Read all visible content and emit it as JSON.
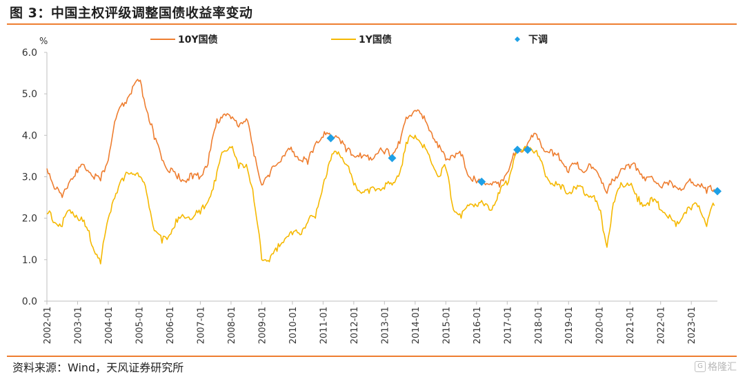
{
  "header": {
    "title": "图  3：中国主权评级调整国债收益率变动"
  },
  "footer": {
    "source": "资料来源：Wind，天风证券研究所",
    "watermark": "格隆汇",
    "watermark_icon": "G"
  },
  "colors": {
    "rule": "#ee7d2f",
    "series_10y": "#ee7d2f",
    "series_1y": "#f5b800",
    "downgrade": "#1ea0e6",
    "axis": "#bfbfbf"
  },
  "chart_data": {
    "type": "line",
    "title": "图  3：中国主权评级调整国债收益率变动",
    "ylabel": "%",
    "xlabel": "",
    "ylim": [
      0,
      6
    ],
    "yticks": [
      "0.0",
      "1.0",
      "2.0",
      "3.0",
      "4.0",
      "5.0",
      "6.0"
    ],
    "xlim": [
      "2002-01",
      "2023-10"
    ],
    "xticks": [
      "2002-01",
      "2003-01",
      "2004-01",
      "2005-01",
      "2006-01",
      "2007-01",
      "2008-01",
      "2009-01",
      "2010-01",
      "2011-01",
      "2012-01",
      "2013-01",
      "2014-01",
      "2015-01",
      "2016-01",
      "2017-01",
      "2018-01",
      "2019-01",
      "2020-01",
      "2021-01",
      "2022-01",
      "2023-01"
    ],
    "legend_position": "top",
    "grid": false,
    "series": [
      {
        "name": "10Y国债",
        "kind": "line",
        "color": "#ee7d2f",
        "x": [
          "2002-01",
          "2002-04",
          "2002-07",
          "2002-10",
          "2003-01",
          "2003-04",
          "2003-07",
          "2003-10",
          "2004-01",
          "2004-04",
          "2004-07",
          "2004-10",
          "2005-01",
          "2005-04",
          "2005-07",
          "2005-10",
          "2006-01",
          "2006-04",
          "2006-07",
          "2006-10",
          "2007-01",
          "2007-04",
          "2007-07",
          "2007-10",
          "2008-01",
          "2008-04",
          "2008-07",
          "2008-10",
          "2009-01",
          "2009-04",
          "2009-07",
          "2009-10",
          "2010-01",
          "2010-04",
          "2010-07",
          "2010-10",
          "2011-01",
          "2011-04",
          "2011-07",
          "2011-10",
          "2012-01",
          "2012-04",
          "2012-07",
          "2012-10",
          "2013-01",
          "2013-04",
          "2013-07",
          "2013-10",
          "2014-01",
          "2014-04",
          "2014-07",
          "2014-10",
          "2015-01",
          "2015-04",
          "2015-07",
          "2015-10",
          "2016-01",
          "2016-04",
          "2016-07",
          "2016-10",
          "2017-01",
          "2017-04",
          "2017-07",
          "2017-10",
          "2018-01",
          "2018-04",
          "2018-07",
          "2018-10",
          "2019-01",
          "2019-04",
          "2019-07",
          "2019-10",
          "2020-01",
          "2020-04",
          "2020-07",
          "2020-10",
          "2021-01",
          "2021-04",
          "2021-07",
          "2021-10",
          "2022-01",
          "2022-04",
          "2022-07",
          "2022-10",
          "2023-01",
          "2023-04",
          "2023-07",
          "2023-10"
        ],
        "values": [
          3.2,
          2.7,
          2.5,
          2.9,
          3.1,
          3.2,
          3.0,
          2.9,
          3.4,
          4.4,
          4.7,
          5.0,
          5.3,
          4.6,
          3.9,
          3.4,
          3.1,
          2.95,
          2.9,
          2.95,
          3.0,
          3.3,
          4.2,
          4.5,
          4.4,
          4.2,
          4.4,
          3.5,
          2.8,
          3.0,
          3.3,
          3.5,
          3.6,
          3.4,
          3.3,
          3.8,
          3.95,
          3.95,
          3.95,
          3.6,
          3.5,
          3.45,
          3.4,
          3.55,
          3.55,
          3.5,
          3.8,
          4.4,
          4.6,
          4.4,
          4.1,
          3.7,
          3.4,
          3.5,
          3.5,
          3.0,
          2.85,
          2.85,
          2.8,
          2.75,
          3.1,
          3.5,
          3.6,
          3.9,
          3.9,
          3.6,
          3.5,
          3.4,
          3.1,
          3.3,
          3.1,
          3.2,
          3.0,
          2.6,
          2.9,
          3.2,
          3.2,
          3.2,
          2.9,
          2.95,
          2.75,
          2.8,
          2.75,
          2.7,
          2.85,
          2.8,
          2.6,
          2.7
        ]
      },
      {
        "name": "1Y国债",
        "kind": "line",
        "color": "#f5b800",
        "x": [
          "2002-01",
          "2002-04",
          "2002-07",
          "2002-10",
          "2003-01",
          "2003-04",
          "2003-07",
          "2003-10",
          "2004-01",
          "2004-04",
          "2004-07",
          "2004-10",
          "2005-01",
          "2005-04",
          "2005-07",
          "2005-10",
          "2006-01",
          "2006-04",
          "2006-07",
          "2006-10",
          "2007-01",
          "2007-04",
          "2007-07",
          "2007-10",
          "2008-01",
          "2008-04",
          "2008-07",
          "2008-10",
          "2009-01",
          "2009-04",
          "2009-07",
          "2009-10",
          "2010-01",
          "2010-04",
          "2010-07",
          "2010-10",
          "2011-01",
          "2011-04",
          "2011-07",
          "2011-10",
          "2012-01",
          "2012-04",
          "2012-07",
          "2012-10",
          "2013-01",
          "2013-04",
          "2013-07",
          "2013-10",
          "2014-01",
          "2014-04",
          "2014-07",
          "2014-10",
          "2015-01",
          "2015-04",
          "2015-07",
          "2015-10",
          "2016-01",
          "2016-04",
          "2016-07",
          "2016-10",
          "2017-01",
          "2017-04",
          "2017-07",
          "2017-10",
          "2018-01",
          "2018-04",
          "2018-07",
          "2018-10",
          "2019-01",
          "2019-04",
          "2019-07",
          "2019-10",
          "2020-01",
          "2020-04",
          "2020-07",
          "2020-10",
          "2021-01",
          "2021-04",
          "2021-07",
          "2021-10",
          "2022-01",
          "2022-04",
          "2022-07",
          "2022-10",
          "2023-01",
          "2023-04",
          "2023-07",
          "2023-10"
        ],
        "values": [
          2.1,
          1.9,
          1.8,
          2.2,
          2.0,
          1.8,
          1.3,
          0.9,
          2.0,
          2.6,
          2.9,
          3.1,
          3.0,
          2.6,
          1.7,
          1.4,
          1.6,
          1.9,
          2.0,
          2.0,
          2.1,
          2.4,
          2.9,
          3.6,
          3.7,
          3.2,
          3.3,
          2.4,
          1.0,
          0.95,
          1.2,
          1.5,
          1.6,
          1.6,
          1.9,
          2.0,
          2.8,
          3.4,
          3.6,
          3.3,
          2.8,
          2.6,
          2.6,
          2.7,
          2.7,
          2.8,
          3.1,
          3.8,
          4.0,
          3.7,
          3.4,
          3.0,
          3.2,
          2.2,
          2.0,
          2.3,
          2.3,
          2.3,
          2.2,
          2.6,
          2.8,
          3.5,
          3.6,
          3.7,
          3.5,
          3.0,
          2.8,
          2.7,
          2.6,
          2.7,
          2.6,
          2.5,
          2.2,
          1.3,
          2.4,
          2.8,
          2.8,
          2.4,
          2.3,
          2.4,
          2.2,
          2.0,
          1.8,
          2.1,
          2.2,
          2.3,
          1.8,
          2.3
        ]
      },
      {
        "name": "下调",
        "kind": "marker",
        "color": "#1ea0e6",
        "x": [
          "2011-04",
          "2013-04",
          "2016-03",
          "2017-05",
          "2017-09",
          "2023-12"
        ],
        "values": [
          3.93,
          3.45,
          2.88,
          3.65,
          3.65,
          2.65
        ]
      }
    ]
  }
}
